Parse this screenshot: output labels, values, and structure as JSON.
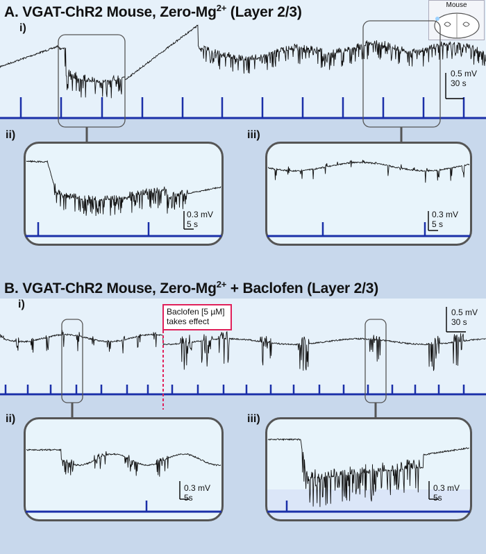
{
  "panel_a": {
    "title": "A. VGAT-ChR2 Mouse, Zero-Mg",
    "title_sup": "2+",
    "title_suffix": " (Layer 2/3)",
    "sub_i": "i)",
    "sub_ii": "ii)",
    "sub_iii": "iii)",
    "scale_main_v": "0.5 mV",
    "scale_main_t": "30 s",
    "scale_ii_v": "0.3 mV",
    "scale_ii_t": "5 s",
    "scale_iii_v": "0.3 mV",
    "scale_iii_t": "5 s"
  },
  "panel_b": {
    "title": "B. VGAT-ChR2 Mouse, Zero-Mg",
    "title_sup": "2+",
    "title_suffix": " + Baclofen (Layer 2/3)",
    "sub_i": "i)",
    "sub_ii": "ii)",
    "sub_iii": "iii)",
    "scale_main_v": "0.5 mV",
    "scale_main_t": "30 s",
    "scale_ii_v": "0.3 mV",
    "scale_ii_t": "5s",
    "scale_iii_v": "0.3 mV",
    "scale_iii_t": "5s",
    "callout_line1": "Baclofen [5 µM]",
    "callout_line2": "takes effect"
  },
  "mouse_icon": {
    "label": "Mouse"
  },
  "colors": {
    "trace": "#111111",
    "stim": "#1a2fa8",
    "callout": "#e0205a",
    "inset_frame": "#555555",
    "panel_bg": "#e6f1fa",
    "page_bg": "#c8d8ec"
  }
}
